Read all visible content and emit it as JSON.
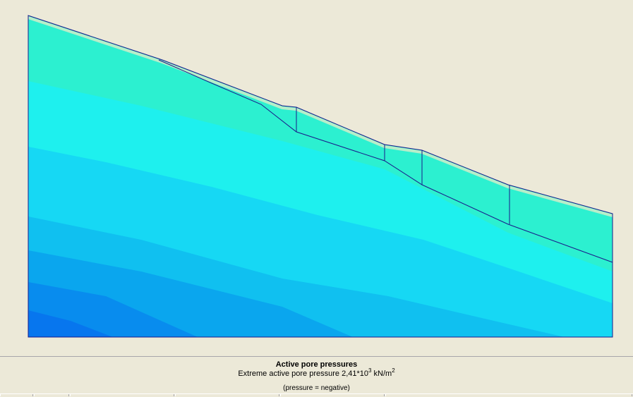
{
  "caption": {
    "title": "Active pore pressures",
    "extreme_prefix": "Extreme active pore pressure 2,41*10",
    "extreme_exponent": "3",
    "extreme_unit": " kN/m",
    "extreme_unit_exponent": "2",
    "note": "(pressure = negative)"
  },
  "colors": {
    "band_1": "#2cf0d0",
    "band_2": "#1ef0ee",
    "band_3": "#16d8f4",
    "band_4": "#10c0f0",
    "band_5": "#0aa6ee",
    "band_6": "#088cee",
    "band_7": "#0776ee",
    "surface_fringe": "#c8ecc8",
    "outline": "#1a1a8a"
  }
}
